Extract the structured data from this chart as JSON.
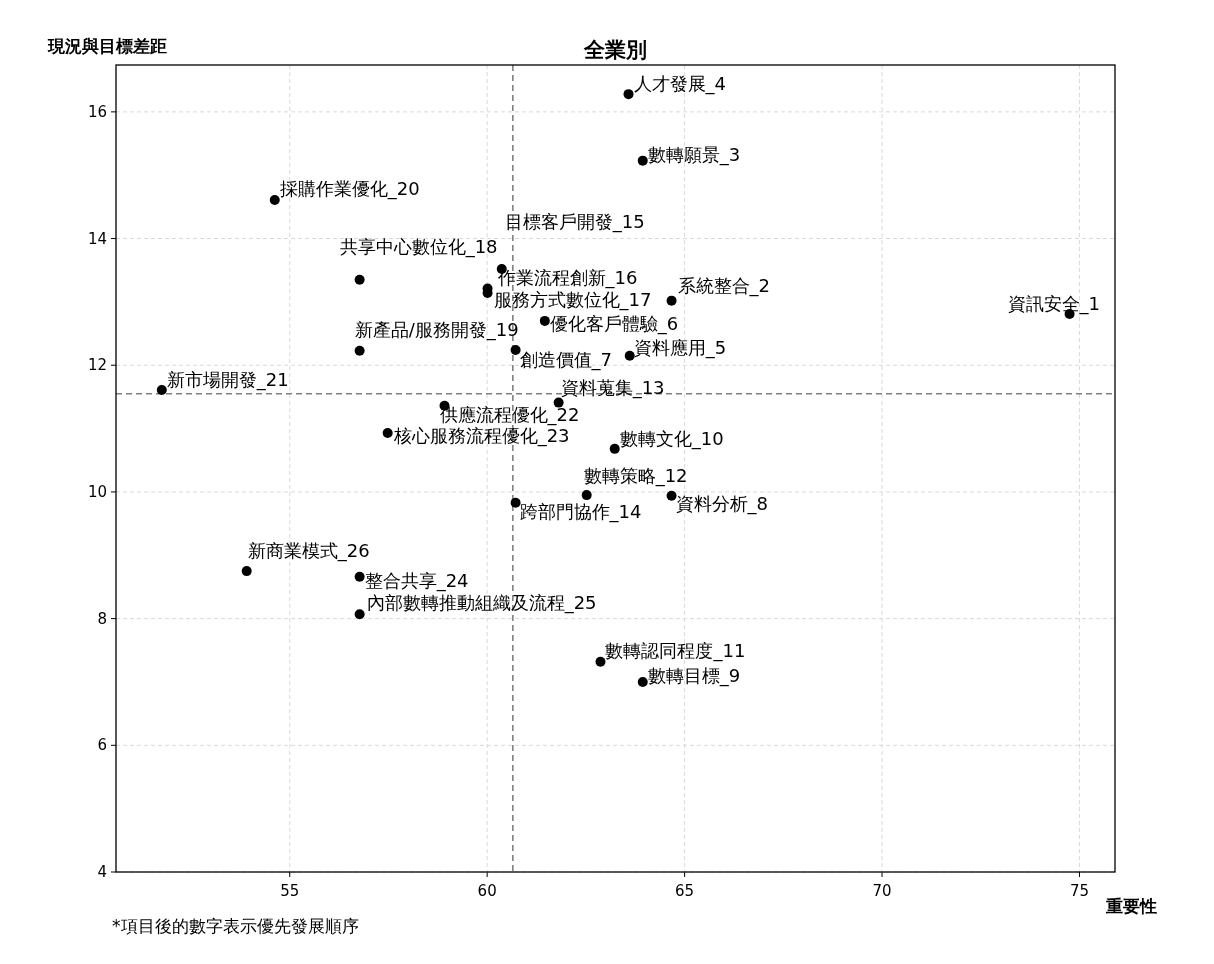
{
  "chart_data": {
    "type": "scatter",
    "title": "全業別",
    "xlabel": "重要性",
    "ylabel": "現況與目標差距",
    "x": [
      74.75,
      64.67,
      63.94,
      63.58,
      63.61,
      61.46,
      60.72,
      64.67,
      63.94,
      63.23,
      62.87,
      62.52,
      61.81,
      60.72,
      60.37,
      60.01,
      60.01,
      56.77,
      56.77,
      54.62,
      51.76,
      58.92,
      57.48,
      56.77,
      56.77,
      53.91
    ],
    "series": [
      {
        "color": "#000000",
        "values": [
          12.81,
          13.02,
          15.23,
          16.28,
          12.15,
          12.7,
          12.24,
          9.94,
          7.0,
          10.68,
          7.32,
          9.95,
          11.41,
          9.83,
          13.52,
          13.21,
          13.14,
          13.35,
          12.23,
          14.61,
          11.61,
          11.36,
          10.93,
          8.66,
          8.07,
          8.75
        ]
      }
    ],
    "annotations": [
      {
        "text": "資訊安全_1",
        "x": 74.75,
        "y": 12.81
      },
      {
        "text": "系統整合_2",
        "x": 64.67,
        "y": 13.02
      },
      {
        "text": "數轉願景_3",
        "x": 63.94,
        "y": 15.23
      },
      {
        "text": "人才發展_4",
        "x": 63.58,
        "y": 16.28
      },
      {
        "text": "資料應用_5",
        "x": 63.61,
        "y": 12.15
      },
      {
        "text": "優化客戶體驗_6",
        "x": 61.46,
        "y": 12.7
      },
      {
        "text": "創造價值_7",
        "x": 60.72,
        "y": 12.24
      },
      {
        "text": "資料分析_8",
        "x": 64.67,
        "y": 9.94
      },
      {
        "text": "數轉目標_9",
        "x": 63.94,
        "y": 7.0
      },
      {
        "text": "數轉文化_10",
        "x": 63.23,
        "y": 10.68
      },
      {
        "text": "數轉認同程度_11",
        "x": 62.87,
        "y": 7.32
      },
      {
        "text": "數轉策略_12",
        "x": 62.52,
        "y": 9.95
      },
      {
        "text": "資料蒐集_13",
        "x": 61.81,
        "y": 11.41
      },
      {
        "text": "跨部門協作_14",
        "x": 60.72,
        "y": 9.83
      },
      {
        "text": "目標客戶開發_15",
        "x": 60.37,
        "y": 13.52
      },
      {
        "text": "作業流程創新_16",
        "x": 60.01,
        "y": 13.21
      },
      {
        "text": "服務方式數位化_17",
        "x": 60.01,
        "y": 13.14
      },
      {
        "text": "共享中心數位化_18",
        "x": 56.77,
        "y": 13.35
      },
      {
        "text": "新產品/服務開發_19",
        "x": 56.77,
        "y": 12.23
      },
      {
        "text": "採購作業優化_20",
        "x": 54.62,
        "y": 14.61
      },
      {
        "text": "新市場開發_21",
        "x": 51.76,
        "y": 11.61
      },
      {
        "text": "供應流程優化_22",
        "x": 58.92,
        "y": 11.36
      },
      {
        "text": "核心服務流程優化_23",
        "x": 57.48,
        "y": 10.93
      },
      {
        "text": "整合共享_24",
        "x": 56.77,
        "y": 8.66
      },
      {
        "text": "內部數轉推動組織及流程_25",
        "x": 56.77,
        "y": 8.07
      },
      {
        "text": "新商業模式_26",
        "x": 53.91,
        "y": 8.75
      },
      "*項目後的數字表示優先發展順序"
    ],
    "ref_lines": [
      {
        "axis": "x",
        "value": 60.65,
        "color": "#808080",
        "line_style": "dashed"
      },
      {
        "axis": "y",
        "value": 11.55,
        "color": "#808080",
        "line_style": "dashed"
      }
    ],
    "xlim": [
      50.6,
      75.9
    ],
    "ylim": [
      4,
      16.74
    ],
    "xticks": [
      55,
      60,
      65,
      70,
      75
    ],
    "yticks": [
      4,
      6,
      8,
      10,
      12,
      14,
      16
    ],
    "grid": true,
    "marker": "circle"
  }
}
